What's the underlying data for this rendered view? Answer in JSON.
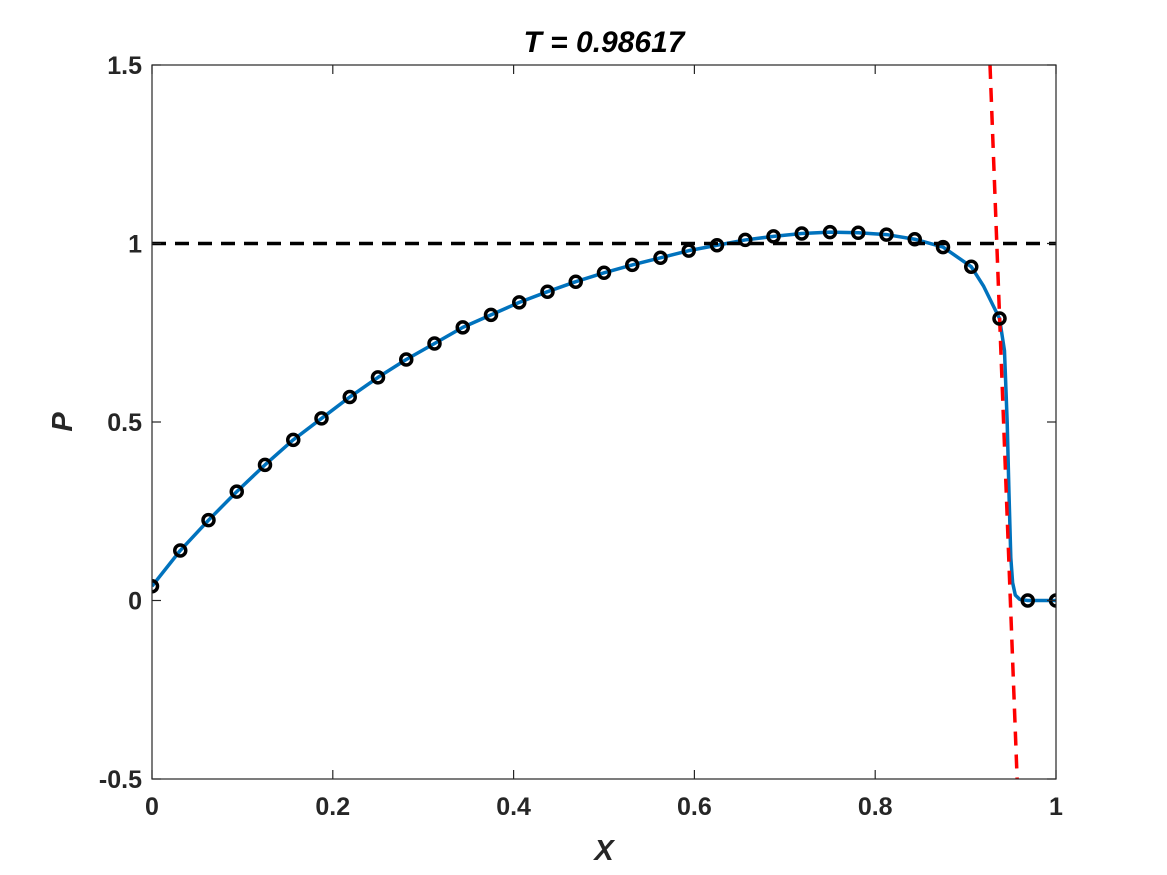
{
  "chart_data": {
    "type": "line",
    "title": "T = 0.98617",
    "xlabel": "X",
    "ylabel": "P",
    "xlim": [
      0,
      1
    ],
    "ylim": [
      -0.5,
      1.5
    ],
    "xticks": [
      0,
      0.2,
      0.4,
      0.6,
      0.8,
      1
    ],
    "xtick_labels": [
      "0",
      "0.2",
      "0.4",
      "0.6",
      "0.8",
      "1"
    ],
    "yticks": [
      -0.5,
      0,
      0.5,
      1,
      1.5
    ],
    "ytick_labels": [
      "-0.5",
      "0",
      "0.5",
      "1",
      "1.5"
    ],
    "grid": false,
    "legend": "none",
    "series": [
      {
        "style": "solid-line",
        "color": "#0072BD",
        "x": [
          0,
          0.03125,
          0.0625,
          0.09375,
          0.125,
          0.15625,
          0.1875,
          0.21875,
          0.25,
          0.28125,
          0.3125,
          0.34375,
          0.375,
          0.40625,
          0.4375,
          0.46875,
          0.5,
          0.53125,
          0.5625,
          0.59375,
          0.625,
          0.65625,
          0.6875,
          0.71875,
          0.75,
          0.78125,
          0.8125,
          0.84375,
          0.875,
          0.90625,
          0.92,
          0.9375,
          0.943,
          0.946,
          0.948,
          0.95,
          0.952,
          0.955,
          0.96,
          0.96875,
          0.98,
          1
        ],
        "y": [
          0.04,
          0.14,
          0.225,
          0.305,
          0.38,
          0.45,
          0.51,
          0.57,
          0.625,
          0.675,
          0.72,
          0.765,
          0.8,
          0.835,
          0.865,
          0.893,
          0.918,
          0.94,
          0.96,
          0.98,
          0.995,
          1.01,
          1.02,
          1.028,
          1.032,
          1.03,
          1.025,
          1.012,
          0.99,
          0.935,
          0.88,
          0.79,
          0.7,
          0.5,
          0.3,
          0.12,
          0.05,
          0.015,
          0.003,
          0.0,
          0.0,
          0.0
        ]
      },
      {
        "style": "circle-markers",
        "color": "#000000",
        "x": [
          0,
          0.03125,
          0.0625,
          0.09375,
          0.125,
          0.15625,
          0.1875,
          0.21875,
          0.25,
          0.28125,
          0.3125,
          0.34375,
          0.375,
          0.40625,
          0.4375,
          0.46875,
          0.5,
          0.53125,
          0.5625,
          0.59375,
          0.625,
          0.65625,
          0.6875,
          0.71875,
          0.75,
          0.78125,
          0.8125,
          0.84375,
          0.875,
          0.90625,
          0.9375,
          0.96875,
          1
        ],
        "y": [
          0.04,
          0.14,
          0.225,
          0.305,
          0.38,
          0.45,
          0.51,
          0.57,
          0.625,
          0.675,
          0.72,
          0.765,
          0.8,
          0.835,
          0.865,
          0.893,
          0.918,
          0.94,
          0.96,
          0.98,
          0.995,
          1.01,
          1.02,
          1.028,
          1.032,
          1.03,
          1.025,
          1.012,
          0.99,
          0.935,
          0.79,
          0.0,
          0.0
        ]
      },
      {
        "style": "dashed-line",
        "color": "#000000",
        "x": [
          0,
          1
        ],
        "y": [
          1,
          1
        ]
      },
      {
        "style": "dashed-line",
        "color": "#FF0000",
        "x": [
          0.927,
          0.957
        ],
        "y": [
          1.5,
          -0.5
        ]
      }
    ]
  }
}
